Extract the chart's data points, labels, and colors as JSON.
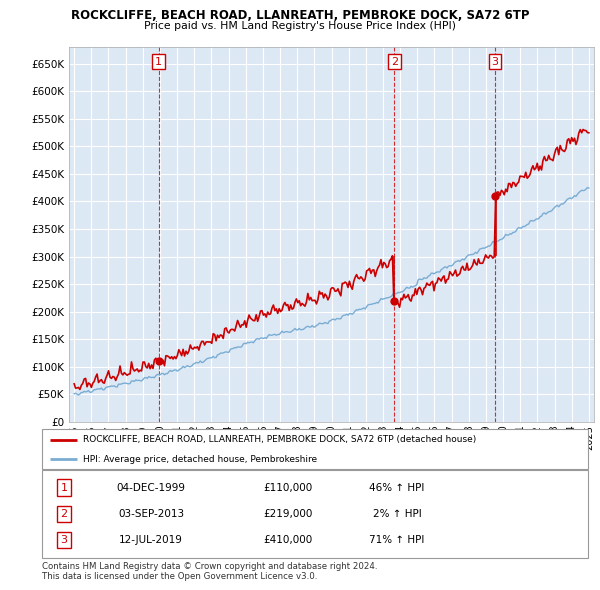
{
  "title": "ROCKCLIFFE, BEACH ROAD, LLANREATH, PEMBROKE DOCK, SA72 6TP",
  "subtitle": "Price paid vs. HM Land Registry's House Price Index (HPI)",
  "ylim": [
    0,
    680000
  ],
  "yticks": [
    0,
    50000,
    100000,
    150000,
    200000,
    250000,
    300000,
    350000,
    400000,
    450000,
    500000,
    550000,
    600000,
    650000
  ],
  "background_color": "#ffffff",
  "chart_bg_color": "#dde8f5",
  "grid_color": "#ffffff",
  "red_color": "#cc0000",
  "blue_color": "#7aadd4",
  "sale_points": [
    {
      "date_idx": 1999.92,
      "price": 110000,
      "label": "1"
    },
    {
      "date_idx": 2013.67,
      "price": 219000,
      "label": "2"
    },
    {
      "date_idx": 2019.54,
      "price": 410000,
      "label": "3"
    }
  ],
  "legend_red_label": "ROCKCLIFFE, BEACH ROAD, LLANREATH, PEMBROKE DOCK, SA72 6TP (detached house)",
  "legend_blue_label": "HPI: Average price, detached house, Pembrokeshire",
  "table_rows": [
    {
      "num": "1",
      "date": "04-DEC-1999",
      "price": "£110,000",
      "hpi": "46% ↑ HPI"
    },
    {
      "num": "2",
      "date": "03-SEP-2013",
      "price": "£219,000",
      "hpi": "2% ↑ HPI"
    },
    {
      "num": "3",
      "date": "12-JUL-2019",
      "price": "£410,000",
      "hpi": "71% ↑ HPI"
    }
  ],
  "footer": "Contains HM Land Registry data © Crown copyright and database right 2024.\nThis data is licensed under the Open Government Licence v3.0."
}
